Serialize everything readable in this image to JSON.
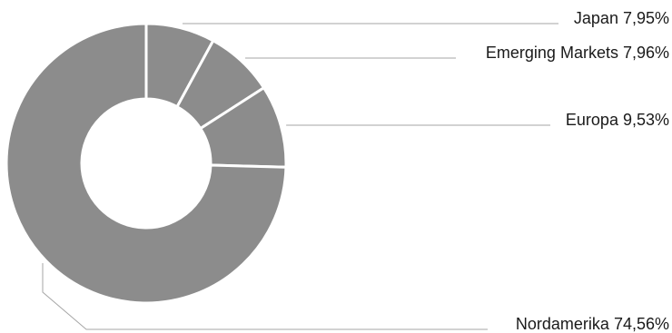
{
  "chart_data": {
    "type": "pie",
    "style": "donut",
    "title": "",
    "slices": [
      {
        "name": "Japan",
        "value": 7.95,
        "label": "Japan 7,95%"
      },
      {
        "name": "Emerging Markets",
        "value": 7.96,
        "label": "Emerging Markets 7,96%"
      },
      {
        "name": "Europa",
        "value": 9.53,
        "label": "Europa 9,53%"
      },
      {
        "name": "Nordamerika",
        "value": 74.56,
        "label": "Nordamerika 74,56%"
      }
    ],
    "colors": {
      "slice": "#8c8c8c",
      "separator": "#ffffff",
      "leader": "#a6a6a6",
      "text": "#1a1a1a"
    }
  }
}
